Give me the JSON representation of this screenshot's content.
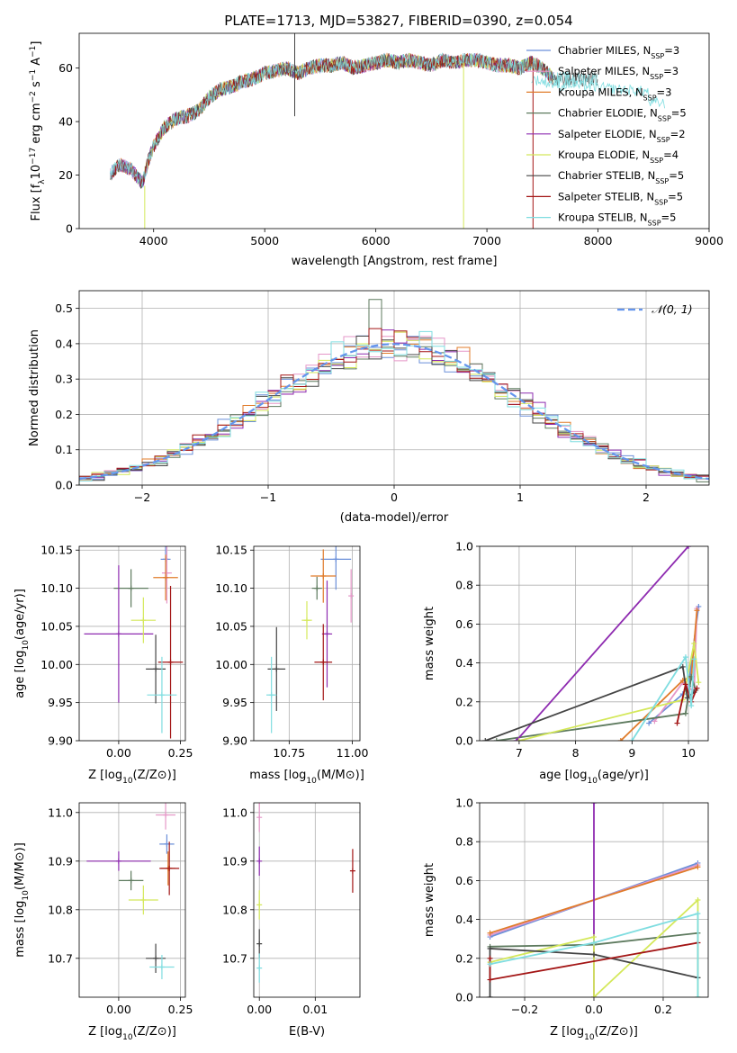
{
  "colors": {
    "chabrier_miles": "#6a8fd9",
    "salpeter_miles": "#e597c8",
    "kroupa_miles": "#e07b2a",
    "chabrier_elodie": "#5d7a5e",
    "salpeter_elodie": "#8e2bb0",
    "kroupa_elodie": "#d4e85a",
    "chabrier_stelib": "#454545",
    "salpeter_stelib": "#a31515",
    "kroupa_stelib": "#7fdde0",
    "normal": "#6495ED",
    "grid": "#b0b0b0"
  },
  "chart_data": [
    {
      "id": "spectrum",
      "type": "line",
      "title": "PLATE=1713, MJD=53827, FIBERID=0390, z=0.054",
      "xlabel": "wavelength [Angstrom, rest frame]",
      "ylabel": "Flux [f_λ 10^-17 erg cm^-2 s^-1 A^-1]",
      "xlim": [
        3330,
        9000
      ],
      "ylim": [
        0,
        73
      ],
      "xticks": [
        "4000",
        "5000",
        "6000",
        "7000",
        "8000",
        "9000"
      ],
      "yticks": [
        "0",
        "20",
        "40",
        "60"
      ],
      "grid": false,
      "legend_position": "right",
      "legend": [
        {
          "prefix": "Chabrier MILES, N",
          "sub": "SSP",
          "suffix": "=3"
        },
        {
          "prefix": "Salpeter MILES, N",
          "sub": "SSP",
          "suffix": "=3"
        },
        {
          "prefix": "Kroupa MILES, N",
          "sub": "SSP",
          "suffix": "=3"
        },
        {
          "prefix": "Chabrier ELODIE, N",
          "sub": "SSP",
          "suffix": "=5"
        },
        {
          "prefix": "Salpeter ELODIE, N",
          "sub": "SSP",
          "suffix": "=2"
        },
        {
          "prefix": "Kroupa ELODIE, N",
          "sub": "SSP",
          "suffix": "=4"
        },
        {
          "prefix": "Chabrier STELIB, N",
          "sub": "SSP",
          "suffix": "=5"
        },
        {
          "prefix": "Salpeter STELIB, N",
          "sub": "SSP",
          "suffix": "=5"
        },
        {
          "prefix": "Kroupa STELIB, N",
          "sub": "SSP",
          "suffix": "=5"
        }
      ],
      "continuum": {
        "x": [
          3600,
          3700,
          3800,
          3900,
          3950,
          4000,
          4100,
          4200,
          4300,
          4400,
          4500,
          4600,
          4700,
          4800,
          4900,
          5000,
          5100,
          5200,
          5300,
          5400,
          5500,
          5600,
          5700,
          5800,
          5900,
          6000,
          6100,
          6200,
          6300,
          6400,
          6500,
          6600,
          6700,
          6800,
          6900,
          7000,
          7100,
          7200,
          7300,
          7400,
          7500,
          7600
        ],
        "y": [
          20,
          24,
          22,
          17,
          25,
          31,
          38,
          41,
          42,
          44,
          49,
          52,
          53,
          55,
          56,
          58,
          59,
          60,
          58,
          60,
          61,
          61,
          62,
          60,
          61,
          62,
          63,
          62,
          63,
          62,
          61,
          63,
          62,
          63,
          63,
          62,
          61,
          61,
          60,
          62,
          60,
          56
        ]
      },
      "artifacts": [
        {
          "series": "chabrier_stelib",
          "x": 5270,
          "from": 42,
          "to": 73
        },
        {
          "series": "kroupa_elodie",
          "x": 6790,
          "from": 62,
          "to": 0
        },
        {
          "series": "salpeter_stelib",
          "x": 7415,
          "from": 60,
          "to": 0
        },
        {
          "series": "kroupa_elodie",
          "x": 3920,
          "from": 16,
          "to": 0
        }
      ]
    },
    {
      "id": "residuals",
      "type": "step",
      "xlabel": "(data-model)/error",
      "ylabel": "Normed distribution",
      "xlim": [
        -2.5,
        2.5
      ],
      "ylim": [
        0,
        0.55
      ],
      "xticks": [
        "−2",
        "−1",
        "0",
        "1",
        "2"
      ],
      "yticks": [
        "0.0",
        "0.1",
        "0.2",
        "0.3",
        "0.4",
        "0.5"
      ],
      "grid": true,
      "legend": "𝒩(0, 1)",
      "legend_position": "top-right",
      "bin_width": 0.1
    },
    {
      "id": "age_vs_Z",
      "type": "errorbar",
      "xlabel": "Z [log10(Z/Z⊙)]",
      "ylabel": "age [log10(age/yr)]",
      "xlim": [
        -0.16,
        0.27
      ],
      "ylim": [
        9.9,
        10.155
      ],
      "xticks": [
        "0.00",
        "0.25"
      ],
      "yticks": [
        "9.90",
        "9.95",
        "10.00",
        "10.05",
        "10.10",
        "10.15"
      ],
      "grid": true,
      "points": [
        {
          "series": "chabrier_miles",
          "x": 0.19,
          "y": 10.138,
          "xerr": 0.02,
          "yerr": 0.04
        },
        {
          "series": "salpeter_miles",
          "x": 0.195,
          "y": 10.12,
          "xerr": 0.02,
          "yerr": 0.04
        },
        {
          "series": "kroupa_miles",
          "x": 0.19,
          "y": 10.114,
          "xerr": 0.05,
          "yerr": 0.03
        },
        {
          "series": "chabrier_elodie",
          "x": 0.05,
          "y": 10.1,
          "xerr": 0.07,
          "yerr": 0.025
        },
        {
          "series": "salpeter_elodie",
          "x": 0.0,
          "y": 10.04,
          "xerr": 0.14,
          "yerr": 0.09
        },
        {
          "series": "kroupa_elodie",
          "x": 0.1,
          "y": 10.058,
          "xerr": 0.05,
          "yerr": 0.03
        },
        {
          "series": "chabrier_stelib",
          "x": 0.15,
          "y": 9.994,
          "xerr": 0.04,
          "yerr": 0.045
        },
        {
          "series": "salpeter_stelib",
          "x": 0.21,
          "y": 10.003,
          "xerr": 0.05,
          "yerr": 0.1
        },
        {
          "series": "kroupa_stelib",
          "x": 0.175,
          "y": 9.96,
          "xerr": 0.06,
          "yerr": 0.05
        }
      ]
    },
    {
      "id": "age_vs_mass",
      "type": "errorbar",
      "xlabel": "mass [log10(M/M⊙)]",
      "ylabel": "",
      "xlim": [
        10.61,
        11.03
      ],
      "ylim": [
        9.9,
        10.155
      ],
      "xticks": [
        "10.75",
        "11.00"
      ],
      "yticks": [
        "9.90",
        "9.95",
        "10.00",
        "10.05",
        "10.10",
        "10.15"
      ],
      "grid": true,
      "points": [
        {
          "series": "chabrier_miles",
          "x": 10.935,
          "y": 10.138,
          "xerr": 0.06,
          "yerr": 0.04
        },
        {
          "series": "salpeter_miles",
          "x": 10.995,
          "y": 10.09,
          "xerr": 0.01,
          "yerr": 0.035
        },
        {
          "series": "kroupa_miles",
          "x": 10.885,
          "y": 10.116,
          "xerr": 0.05,
          "yerr": 0.035
        },
        {
          "series": "chabrier_elodie",
          "x": 10.86,
          "y": 10.1,
          "xerr": 0.02,
          "yerr": 0.015
        },
        {
          "series": "salpeter_elodie",
          "x": 10.9,
          "y": 10.04,
          "xerr": 0.02,
          "yerr": 0.07
        },
        {
          "series": "kroupa_elodie",
          "x": 10.82,
          "y": 10.058,
          "xerr": 0.02,
          "yerr": 0.025
        },
        {
          "series": "chabrier_stelib",
          "x": 10.7,
          "y": 9.994,
          "xerr": 0.035,
          "yerr": 0.055
        },
        {
          "series": "salpeter_stelib",
          "x": 10.885,
          "y": 10.003,
          "xerr": 0.035,
          "yerr": 0.05
        },
        {
          "series": "kroupa_stelib",
          "x": 10.68,
          "y": 9.96,
          "xerr": 0.02,
          "yerr": 0.05
        }
      ]
    },
    {
      "id": "weight_vs_age",
      "type": "line",
      "xlabel": "age  [log10(age/yr)]",
      "ylabel": "mass weight",
      "xlim": [
        6.3,
        10.35
      ],
      "ylim": [
        0,
        1.0
      ],
      "xticks": [
        "7",
        "8",
        "9",
        "10"
      ],
      "yticks": [
        "0.0",
        "0.2",
        "0.4",
        "0.6",
        "0.8",
        "1.0"
      ],
      "grid": true,
      "series": [
        {
          "series": "chabrier_miles",
          "x": [
            9.3,
            9.9,
            10.0,
            10.18
          ],
          "y": [
            0.09,
            0.24,
            0.28,
            0.69
          ]
        },
        {
          "series": "salpeter_miles",
          "x": [
            9.4,
            9.9,
            10.1,
            10.15
          ],
          "y": [
            0.1,
            0.3,
            0.25,
            0.68
          ]
        },
        {
          "series": "kroupa_miles",
          "x": [
            8.8,
            9.9,
            10.05,
            10.15
          ],
          "y": [
            0.0,
            0.31,
            0.33,
            0.67
          ]
        },
        {
          "series": "chabrier_elodie",
          "x": [
            6.6,
            9.95,
            10.05,
            10.13
          ],
          "y": [
            0.0,
            0.14,
            0.33,
            0.26
          ]
        },
        {
          "series": "salpeter_elodie",
          "x": [
            6.95,
            10.0
          ],
          "y": [
            0.0,
            1.0
          ]
        },
        {
          "series": "kroupa_elodie",
          "x": [
            7.0,
            9.9,
            10.1,
            10.18
          ],
          "y": [
            0.0,
            0.21,
            0.5,
            0.3
          ]
        },
        {
          "series": "chabrier_stelib",
          "x": [
            6.4,
            9.9,
            9.98,
            10.1
          ],
          "y": [
            0.0,
            0.38,
            0.22,
            0.25
          ]
        },
        {
          "series": "salpeter_stelib",
          "x": [
            9.8,
            9.95,
            10.05,
            10.15
          ],
          "y": [
            0.09,
            0.29,
            0.2,
            0.27
          ]
        },
        {
          "series": "kroupa_stelib",
          "x": [
            9.0,
            9.95,
            10.05,
            10.1
          ],
          "y": [
            0.0,
            0.43,
            0.18,
            0.42
          ]
        }
      ]
    },
    {
      "id": "mass_vs_Z",
      "type": "errorbar",
      "xlabel": "Z [log10(Z/Z⊙)]",
      "ylabel": "mass [log10(M/M⊙)]",
      "xlim": [
        -0.16,
        0.27
      ],
      "ylim": [
        10.62,
        11.02
      ],
      "xticks": [
        "0.00",
        "0.25"
      ],
      "yticks": [
        "10.7",
        "10.8",
        "10.9",
        "11.0"
      ],
      "grid": true,
      "points": [
        {
          "series": "chabrier_miles",
          "x": 0.195,
          "y": 10.935,
          "xerr": 0.03,
          "yerr": 0.02
        },
        {
          "series": "salpeter_miles",
          "x": 0.19,
          "y": 10.995,
          "xerr": 0.04,
          "yerr": 0.03
        },
        {
          "series": "kroupa_miles",
          "x": 0.2,
          "y": 10.885,
          "xerr": 0.03,
          "yerr": 0.035
        },
        {
          "series": "chabrier_elodie",
          "x": 0.05,
          "y": 10.86,
          "xerr": 0.05,
          "yerr": 0.02
        },
        {
          "series": "salpeter_elodie",
          "x": 0.0,
          "y": 10.9,
          "xerr": 0.13,
          "yerr": 0.02
        },
        {
          "series": "kroupa_elodie",
          "x": 0.1,
          "y": 10.82,
          "xerr": 0.06,
          "yerr": 0.03
        },
        {
          "series": "chabrier_stelib",
          "x": 0.15,
          "y": 10.7,
          "xerr": 0.04,
          "yerr": 0.03
        },
        {
          "series": "salpeter_stelib",
          "x": 0.205,
          "y": 10.885,
          "xerr": 0.04,
          "yerr": 0.055
        },
        {
          "series": "kroupa_stelib",
          "x": 0.175,
          "y": 10.682,
          "xerr": 0.05,
          "yerr": 0.025
        }
      ]
    },
    {
      "id": "mass_vs_ebv",
      "type": "errorbar",
      "xlabel": "E(B-V)",
      "ylabel": "",
      "xlim": [
        -0.001,
        0.018
      ],
      "ylim": [
        10.62,
        11.02
      ],
      "xticks": [
        "0.00",
        "0.01"
      ],
      "yticks": [
        "10.7",
        "10.8",
        "10.9",
        "11.0"
      ],
      "grid": true,
      "points": [
        {
          "series": "salpeter_miles",
          "x": 0.0,
          "y": 10.99,
          "xerr": 0.0,
          "yerr": 0.03
        },
        {
          "series": "salpeter_elodie",
          "x": 0.0,
          "y": 10.9,
          "xerr": 0.0,
          "yerr": 0.03
        },
        {
          "series": "kroupa_elodie",
          "x": 0.0,
          "y": 10.81,
          "xerr": 0.0,
          "yerr": 0.03
        },
        {
          "series": "chabrier_stelib",
          "x": 0.0,
          "y": 10.73,
          "xerr": 0.0,
          "yerr": 0.03
        },
        {
          "series": "kroupa_stelib",
          "x": 0.0,
          "y": 10.68,
          "xerr": 0.0,
          "yerr": 0.03
        },
        {
          "series": "salpeter_stelib",
          "x": 0.0167,
          "y": 10.88,
          "xerr": 0.0,
          "yerr": 0.045
        }
      ]
    },
    {
      "id": "weight_vs_Z",
      "type": "line",
      "xlabel": "Z [log10(Z/Z⊙)]",
      "ylabel": "mass weight",
      "xlim": [
        -0.33,
        0.33
      ],
      "ylim": [
        0,
        1.0
      ],
      "xticks": [
        "−0.2",
        "0.0",
        "0.2"
      ],
      "yticks": [
        "0.0",
        "0.2",
        "0.4",
        "0.6",
        "0.8",
        "1.0"
      ],
      "grid": true,
      "series": [
        {
          "series": "chabrier_miles",
          "x": [
            -0.3,
            0.3
          ],
          "y": [
            0.31,
            0.69
          ]
        },
        {
          "series": "salpeter_miles",
          "x": [
            -0.3,
            0.3
          ],
          "y": [
            0.32,
            0.68
          ]
        },
        {
          "series": "kroupa_miles",
          "x": [
            -0.3,
            0.3
          ],
          "y": [
            0.33,
            0.67
          ]
        },
        {
          "series": "chabrier_elodie",
          "x": [
            -0.3,
            0.0,
            0.3,
            0.3
          ],
          "y": [
            0.26,
            0.27,
            0.33,
            0.1
          ]
        },
        {
          "series": "salpeter_elodie",
          "x": [
            0.0,
            0.0
          ],
          "y": [
            0.0,
            1.0
          ]
        },
        {
          "series": "kroupa_elodie",
          "x": [
            -0.3,
            0.0,
            0.0,
            0.3,
            0.3
          ],
          "y": [
            0.18,
            0.31,
            0.0,
            0.5,
            0.0
          ]
        },
        {
          "series": "chabrier_stelib",
          "x": [
            -0.3,
            -0.3,
            0.0,
            0.3
          ],
          "y": [
            0.0,
            0.25,
            0.22,
            0.1
          ]
        },
        {
          "series": "salpeter_stelib",
          "x": [
            -0.3,
            -0.3,
            0.3
          ],
          "y": [
            0.2,
            0.09,
            0.28
          ]
        },
        {
          "series": "kroupa_stelib",
          "x": [
            -0.3,
            0.0,
            0.3,
            0.3
          ],
          "y": [
            0.17,
            0.28,
            0.43,
            0.0
          ]
        }
      ]
    }
  ]
}
